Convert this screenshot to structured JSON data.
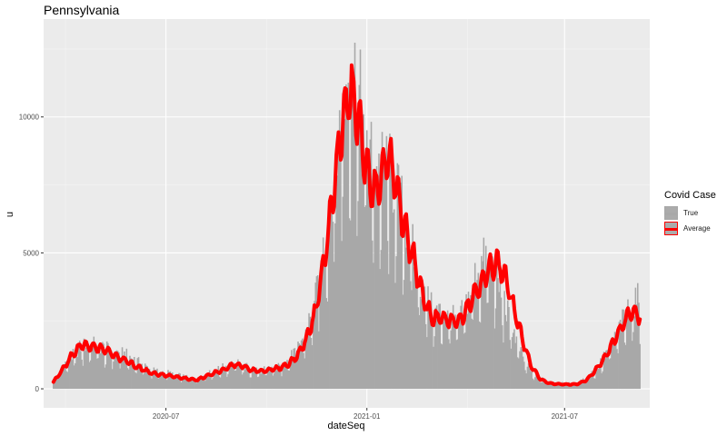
{
  "chart_data": {
    "type": "bar",
    "title": "Pennsylvania",
    "xlabel": "dateSeq",
    "ylabel": "u",
    "x_range": [
      "2020-03-11",
      "2021-09-17"
    ],
    "y_range": [
      -700,
      13600
    ],
    "x_ticks": [
      {
        "date": "2020-07-01",
        "label": "2020-07"
      },
      {
        "date": "2021-01-01",
        "label": "2021-01"
      },
      {
        "date": "2021-07-01",
        "label": "2021-07"
      }
    ],
    "y_ticks": [
      0,
      5000,
      10000
    ],
    "grid": true,
    "legend_title": "Covid Case",
    "legend_position": "right",
    "series": [
      {
        "name": "True",
        "kind": "daily bars",
        "color": "#a8a8a8",
        "start_date": "2020-03-20",
        "end_date": "2021-09-08",
        "values": [
          300,
          900,
          1200,
          1600,
          1700,
          1650,
          1500,
          1400,
          1300,
          1100,
          900,
          700,
          650,
          600,
          500,
          420,
          380,
          550,
          700,
          850,
          980,
          900,
          750,
          700,
          780,
          850,
          1100,
          1500,
          2200,
          3300,
          5500,
          7900,
          10600,
          12500,
          10800,
          9000,
          8200,
          8500,
          7500,
          6500,
          5000,
          3700,
          3000,
          2900,
          2700,
          2600,
          3500,
          4500,
          5000,
          4400,
          3200,
          2200,
          1200,
          600,
          400,
          300,
          250,
          220,
          200,
          400,
          700,
          1200,
          1800,
          2500,
          3200,
          3400
        ]
      },
      {
        "name": "Average",
        "kind": "7-day average line",
        "color": "#ff0000",
        "start_date": "2020-03-20",
        "end_date": "2021-09-08",
        "values": [
          250,
          700,
          1200,
          1600,
          1550,
          1500,
          1400,
          1200,
          1050,
          850,
          700,
          570,
          520,
          470,
          410,
          360,
          330,
          480,
          600,
          720,
          900,
          830,
          680,
          650,
          700,
          760,
          900,
          1200,
          1800,
          2800,
          4700,
          7100,
          9800,
          11000,
          9500,
          7600,
          7200,
          8700,
          7400,
          5800,
          4700,
          3300,
          2600,
          2600,
          2500,
          2500,
          3100,
          3700,
          4200,
          4700,
          4200,
          3000,
          1800,
          800,
          350,
          200,
          170,
          160,
          170,
          300,
          650,
          1100,
          1700,
          2300,
          2900,
          2700
        ]
      }
    ]
  }
}
